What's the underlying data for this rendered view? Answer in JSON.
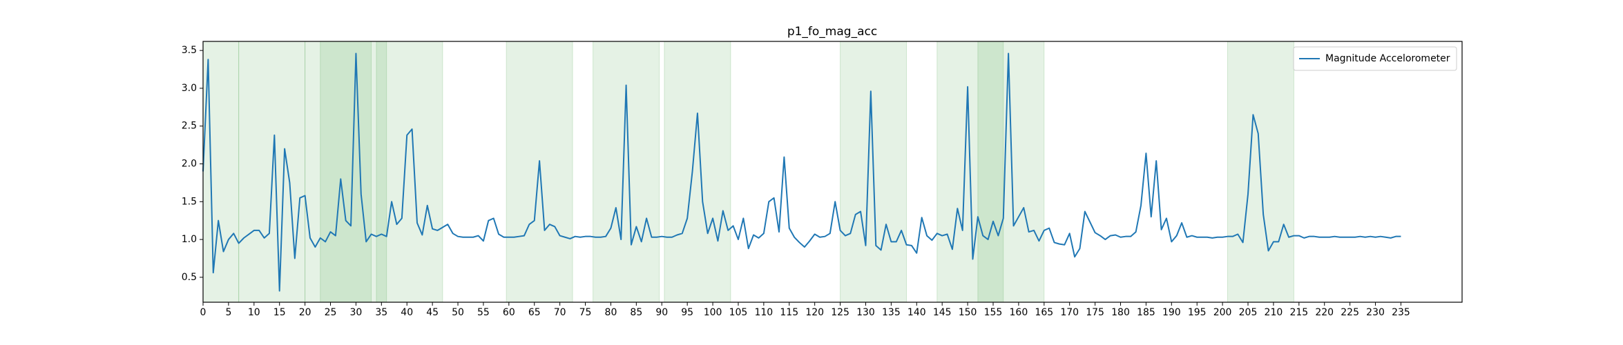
{
  "chart_data": {
    "type": "line",
    "title": "p1_fo_mag_acc",
    "x": [
      0,
      1,
      2,
      3,
      4,
      5,
      6,
      7,
      8,
      9,
      10,
      11,
      12,
      13,
      14,
      15,
      16,
      17,
      18,
      19,
      20,
      21,
      22,
      23,
      24,
      25,
      26,
      27,
      28,
      29,
      30,
      31,
      32,
      33,
      34,
      35,
      36,
      37,
      38,
      39,
      40,
      41,
      42,
      43,
      44,
      45,
      46,
      47,
      48,
      49,
      50,
      51,
      52,
      53,
      54,
      55,
      56,
      57,
      58,
      59,
      60,
      61,
      62,
      63,
      64,
      65,
      66,
      67,
      68,
      69,
      70,
      71,
      72,
      73,
      74,
      75,
      76,
      77,
      78,
      79,
      80,
      81,
      82,
      83,
      84,
      85,
      86,
      87,
      88,
      89,
      90,
      91,
      92,
      93,
      94,
      95,
      96,
      97,
      98,
      99,
      100,
      101,
      102,
      103,
      104,
      105,
      106,
      107,
      108,
      109,
      110,
      111,
      112,
      113,
      114,
      115,
      116,
      117,
      118,
      119,
      120,
      121,
      122,
      123,
      124,
      125,
      126,
      127,
      128,
      129,
      130,
      131,
      132,
      133,
      134,
      135,
      136,
      137,
      138,
      139,
      140,
      141,
      142,
      143,
      144,
      145,
      146,
      147,
      148,
      149,
      150,
      151,
      152,
      153,
      154,
      155,
      156,
      157,
      158,
      159,
      160,
      161,
      162,
      163,
      164,
      165,
      166,
      167,
      168,
      169,
      170,
      171,
      172,
      173,
      174,
      175,
      176,
      177,
      178,
      179,
      180,
      181,
      182,
      183,
      184,
      185,
      186,
      187,
      188,
      189,
      190,
      191,
      192,
      193,
      194,
      195,
      196,
      197,
      198,
      199,
      200,
      201,
      202,
      203,
      204,
      205,
      206,
      207,
      208,
      209,
      210,
      211,
      212,
      213,
      214,
      215,
      216,
      217,
      218,
      219,
      220,
      221,
      222,
      223,
      224,
      225,
      226,
      227,
      228,
      229,
      230,
      231,
      232,
      233,
      234,
      235
    ],
    "series": [
      {
        "name": "Magnitude Accelorometer",
        "color": "#1f77b4",
        "values": [
          1.9,
          3.38,
          0.56,
          1.25,
          0.84,
          1.0,
          1.08,
          0.95,
          1.02,
          1.07,
          1.12,
          1.12,
          1.02,
          1.08,
          2.38,
          0.32,
          2.2,
          1.75,
          0.75,
          1.55,
          1.58,
          1.02,
          0.9,
          1.02,
          0.97,
          1.1,
          1.05,
          1.8,
          1.25,
          1.18,
          3.46,
          1.6,
          0.97,
          1.07,
          1.04,
          1.07,
          1.04,
          1.5,
          1.2,
          1.28,
          2.38,
          2.46,
          1.22,
          1.06,
          1.45,
          1.14,
          1.12,
          1.16,
          1.2,
          1.08,
          1.04,
          1.03,
          1.03,
          1.03,
          1.05,
          0.98,
          1.25,
          1.28,
          1.07,
          1.03,
          1.03,
          1.03,
          1.04,
          1.05,
          1.2,
          1.25,
          2.04,
          1.12,
          1.2,
          1.17,
          1.05,
          1.03,
          1.01,
          1.04,
          1.03,
          1.04,
          1.04,
          1.03,
          1.03,
          1.04,
          1.15,
          1.42,
          1.0,
          3.04,
          0.93,
          1.17,
          0.97,
          1.28,
          1.03,
          1.03,
          1.04,
          1.03,
          1.03,
          1.06,
          1.08,
          1.28,
          1.9,
          2.67,
          1.5,
          1.08,
          1.28,
          0.98,
          1.38,
          1.12,
          1.18,
          1.0,
          1.28,
          0.88,
          1.06,
          1.02,
          1.08,
          1.5,
          1.55,
          1.1,
          2.09,
          1.15,
          1.03,
          0.96,
          0.9,
          0.98,
          1.07,
          1.03,
          1.04,
          1.08,
          1.5,
          1.12,
          1.05,
          1.08,
          1.33,
          1.37,
          0.92,
          2.96,
          0.92,
          0.86,
          1.2,
          0.97,
          0.97,
          1.12,
          0.93,
          0.92,
          0.82,
          1.29,
          1.05,
          0.99,
          1.08,
          1.05,
          1.07,
          0.87,
          1.41,
          1.12,
          3.02,
          0.74,
          1.3,
          1.05,
          1.0,
          1.24,
          1.05,
          1.28,
          3.46,
          1.18,
          1.3,
          1.42,
          1.1,
          1.12,
          0.98,
          1.12,
          1.15,
          0.96,
          0.94,
          0.93,
          1.08,
          0.77,
          0.88,
          1.37,
          1.23,
          1.09,
          1.05,
          1.0,
          1.05,
          1.06,
          1.03,
          1.04,
          1.04,
          1.1,
          1.45,
          2.14,
          1.3,
          2.04,
          1.13,
          1.28,
          0.97,
          1.05,
          1.22,
          1.03,
          1.05,
          1.03,
          1.03,
          1.03,
          1.02,
          1.03,
          1.03,
          1.04,
          1.04,
          1.07,
          0.96,
          1.6,
          2.65,
          2.4,
          1.33,
          0.85,
          0.97,
          0.97,
          1.2,
          1.03,
          1.05,
          1.05,
          1.02,
          1.04,
          1.04,
          1.03,
          1.03,
          1.03,
          1.04,
          1.03,
          1.03,
          1.03,
          1.03,
          1.04,
          1.03,
          1.04,
          1.03,
          1.04,
          1.03,
          1.02,
          1.04,
          1.04
        ]
      }
    ],
    "spans": [
      [
        0,
        7
      ],
      [
        7,
        20
      ],
      [
        20,
        33
      ],
      [
        23,
        36
      ],
      [
        34,
        47
      ],
      [
        59.5,
        72.5
      ],
      [
        76.5,
        89.5
      ],
      [
        90.5,
        103.5
      ],
      [
        125,
        138
      ],
      [
        144,
        157
      ],
      [
        152,
        165
      ],
      [
        201,
        214
      ]
    ],
    "span_color": "green",
    "xlim": [
      0,
      247
    ],
    "ylim": [
      0.17,
      3.62
    ],
    "xticks": [
      0,
      5,
      10,
      15,
      20,
      25,
      30,
      35,
      40,
      45,
      50,
      55,
      60,
      65,
      70,
      75,
      80,
      85,
      90,
      95,
      100,
      105,
      110,
      115,
      120,
      125,
      130,
      135,
      140,
      145,
      150,
      155,
      160,
      165,
      170,
      175,
      180,
      185,
      190,
      195,
      200,
      205,
      210,
      215,
      220,
      225,
      230,
      235
    ],
    "yticks": [
      0.5,
      {
        "value": 1,
        "label": "1.0"
      },
      1.5,
      {
        "value": 2,
        "label": "2.0"
      },
      2.5,
      {
        "value": 3,
        "label": "3.0"
      },
      3.5
    ],
    "legend": "upper right"
  }
}
